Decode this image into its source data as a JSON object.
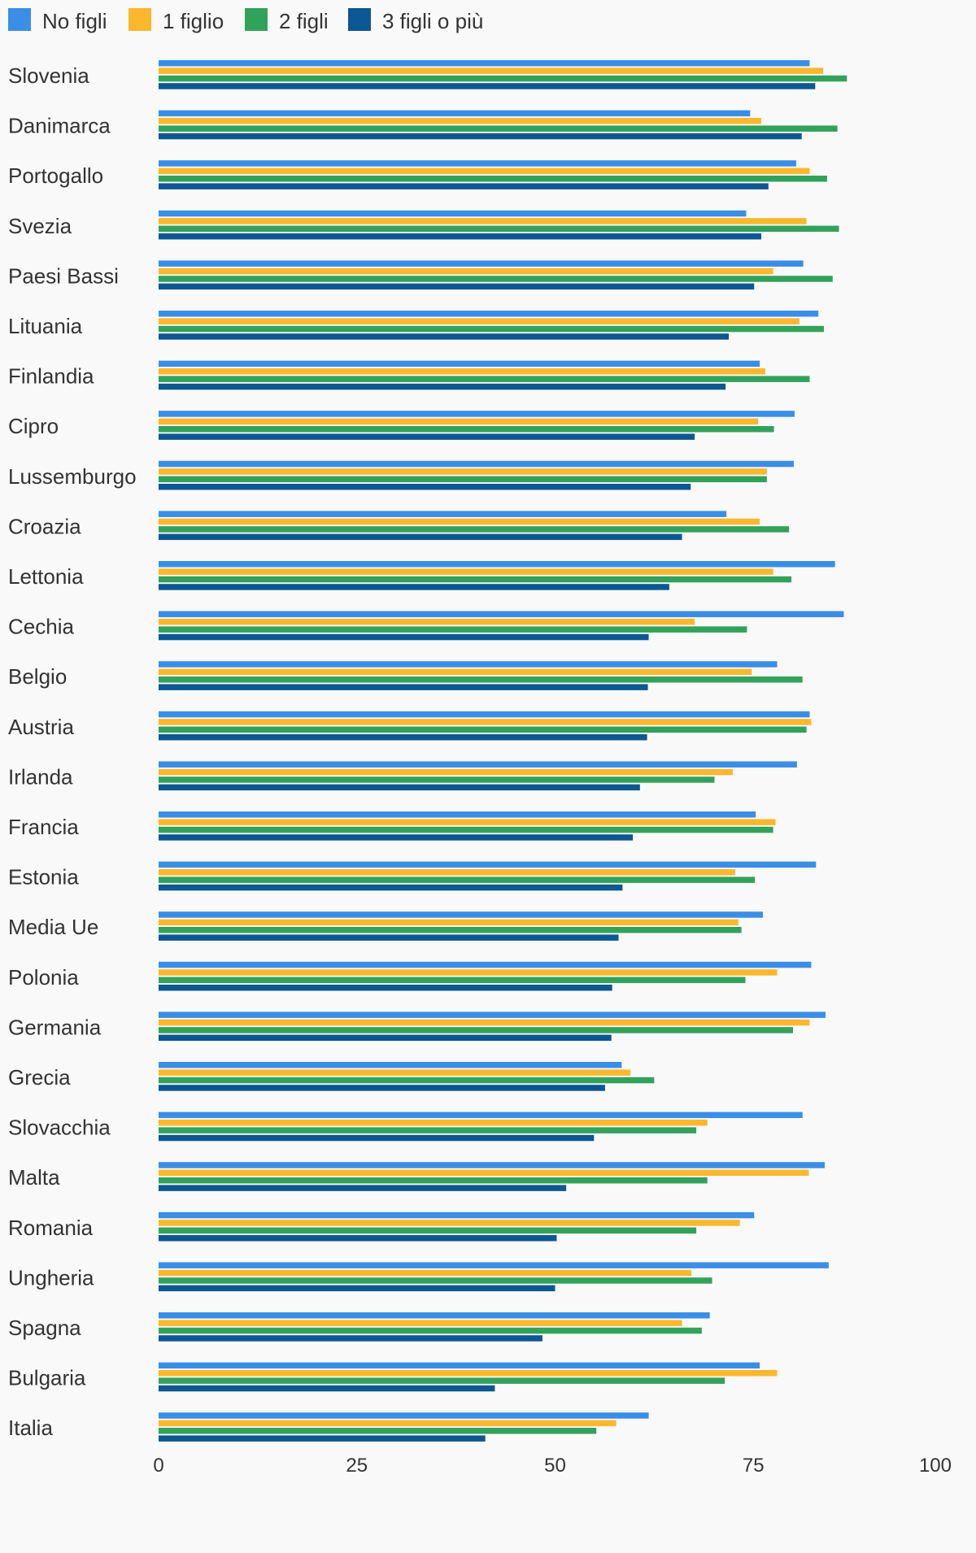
{
  "chart_data": {
    "type": "bar",
    "orientation": "horizontal",
    "title": "",
    "xlabel": "",
    "ylabel": "",
    "xlim": [
      0,
      100
    ],
    "xticks": [
      0,
      25,
      50,
      75,
      100
    ],
    "grid": false,
    "legend_position": "top-left",
    "categories": [
      "Slovenia",
      "Danimarca",
      "Portogallo",
      "Svezia",
      "Paesi Bassi",
      "Lituania",
      "Finlandia",
      "Cipro",
      "Lussemburgo",
      "Croazia",
      "Lettonia",
      "Cechia",
      "Belgio",
      "Austria",
      "Irlanda",
      "Francia",
      "Estonia",
      "Media Ue",
      "Polonia",
      "Germania",
      "Grecia",
      "Slovacchia",
      "Malta",
      "Romania",
      "Ungheria",
      "Spagna",
      "Bulgaria",
      "Italia"
    ],
    "series": [
      {
        "name": "No figli",
        "color": "#3a8ee6",
        "values": [
          82.1,
          74.6,
          80.4,
          74.1,
          81.3,
          83.2,
          75.8,
          80.2,
          80.1,
          71.6,
          85.3,
          86.4,
          78.0,
          82.1,
          80.5,
          75.3,
          82.9,
          76.2,
          82.3,
          84.1,
          58.4,
          81.2,
          84.0,
          75.1,
          84.5,
          69.5,
          75.8,
          61.8
        ]
      },
      {
        "name": "1 figlio",
        "color": "#fbb72d",
        "values": [
          83.8,
          76.0,
          82.1,
          81.7,
          77.5,
          80.8,
          76.5,
          75.6,
          76.7,
          75.8,
          77.5,
          67.6,
          74.8,
          82.3,
          72.4,
          77.8,
          72.7,
          73.1,
          78.0,
          82.1,
          59.5,
          69.2,
          82.0,
          73.3,
          67.2,
          66.0,
          78.0,
          57.7
        ]
      },
      {
        "name": "2 figli",
        "color": "#32a25a",
        "values": [
          86.8,
          85.6,
          84.3,
          85.8,
          85.0,
          83.9,
          82.1,
          77.6,
          76.7,
          79.5,
          79.8,
          74.2,
          81.2,
          81.7,
          70.1,
          77.5,
          75.2,
          73.5,
          74.0,
          80.0,
          62.5,
          67.8,
          69.2,
          67.8,
          69.8,
          68.5,
          71.4,
          55.2
        ]
      },
      {
        "name": "3 figli o più",
        "color": "#0d5792",
        "values": [
          82.8,
          81.1,
          76.9,
          76.0,
          75.1,
          71.9,
          71.5,
          67.6,
          67.1,
          66.0,
          64.4,
          61.8,
          61.7,
          61.6,
          60.7,
          59.8,
          58.5,
          58.0,
          57.2,
          57.1,
          56.3,
          54.9,
          51.4,
          50.2,
          50.0,
          48.4,
          42.4,
          41.2
        ]
      }
    ]
  }
}
